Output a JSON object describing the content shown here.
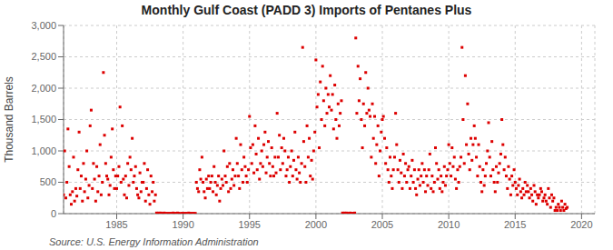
{
  "chart_data": {
    "type": "scatter",
    "title": "Monthly Gulf Coast (PADD 3) Imports of Pentanes Plus",
    "ylabel": "Thousand Barrels",
    "source": "Source: U.S. Energy Information Administration",
    "color": "#dd0000",
    "marker": "square",
    "grid": true,
    "xlim": [
      1981.0,
      2021.0
    ],
    "xticks": [
      1985,
      1990,
      1995,
      2000,
      2005,
      2010,
      2015,
      2020
    ],
    "ylim": [
      0,
      3000
    ],
    "yticks": [
      0,
      500,
      {
        "value": 1000,
        "label": "1,000"
      },
      {
        "value": 1500,
        "label": "1,500"
      },
      {
        "value": 2000,
        "label": "2,000"
      },
      {
        "value": 2500,
        "label": "2,500"
      },
      {
        "value": 3000,
        "label": "3,000"
      }
    ],
    "x": [
      1981.0,
      1981.08,
      1981.17,
      1981.25,
      1981.33,
      1981.42,
      1981.5,
      1981.58,
      1981.67,
      1981.75,
      1981.83,
      1981.92,
      1982.0,
      1982.08,
      1982.17,
      1982.25,
      1982.33,
      1982.42,
      1982.5,
      1982.58,
      1982.67,
      1982.75,
      1982.83,
      1982.92,
      1983.0,
      1983.08,
      1983.17,
      1983.25,
      1983.33,
      1983.42,
      1983.5,
      1983.58,
      1983.67,
      1983.75,
      1983.83,
      1983.92,
      1984.0,
      1984.08,
      1984.17,
      1984.25,
      1984.33,
      1984.42,
      1984.5,
      1984.58,
      1984.67,
      1984.75,
      1984.83,
      1984.92,
      1985.0,
      1985.08,
      1985.17,
      1985.25,
      1985.33,
      1985.42,
      1985.5,
      1985.58,
      1985.67,
      1985.75,
      1985.83,
      1985.92,
      1986.0,
      1986.08,
      1986.17,
      1986.25,
      1986.33,
      1986.42,
      1986.5,
      1986.58,
      1986.67,
      1986.75,
      1986.83,
      1986.92,
      1987.0,
      1987.08,
      1987.17,
      1987.25,
      1987.33,
      1987.42,
      1987.5,
      1987.58,
      1987.67,
      1987.75,
      1987.83,
      1987.92,
      1988.0,
      1988.08,
      1988.17,
      1988.25,
      1988.33,
      1988.42,
      1988.5,
      1988.58,
      1988.67,
      1988.75,
      1988.83,
      1988.92,
      1989.0,
      1989.08,
      1989.17,
      1989.25,
      1989.33,
      1989.42,
      1989.5,
      1989.58,
      1989.67,
      1989.75,
      1989.83,
      1989.92,
      1990.0,
      1990.08,
      1990.17,
      1990.25,
      1990.33,
      1990.42,
      1990.5,
      1990.58,
      1990.67,
      1990.75,
      1990.83,
      1990.92,
      1991.0,
      1991.08,
      1991.17,
      1991.25,
      1991.33,
      1991.42,
      1991.5,
      1991.58,
      1991.67,
      1991.75,
      1991.83,
      1991.92,
      1992.0,
      1992.08,
      1992.17,
      1992.25,
      1992.33,
      1992.42,
      1992.5,
      1992.58,
      1992.67,
      1992.75,
      1992.83,
      1992.92,
      1993.0,
      1993.08,
      1993.17,
      1993.25,
      1993.33,
      1993.42,
      1993.5,
      1993.58,
      1993.67,
      1993.75,
      1993.83,
      1993.92,
      1994.0,
      1994.08,
      1994.17,
      1994.25,
      1994.33,
      1994.42,
      1994.5,
      1994.58,
      1994.67,
      1994.75,
      1994.83,
      1994.92,
      1995.0,
      1995.08,
      1995.17,
      1995.25,
      1995.33,
      1995.42,
      1995.5,
      1995.58,
      1995.67,
      1995.75,
      1995.83,
      1995.92,
      1996.0,
      1996.08,
      1996.17,
      1996.25,
      1996.33,
      1996.42,
      1996.5,
      1996.58,
      1996.67,
      1996.75,
      1996.83,
      1996.92,
      1997.0,
      1997.08,
      1997.17,
      1997.25,
      1997.33,
      1997.42,
      1997.5,
      1997.58,
      1997.67,
      1997.75,
      1997.83,
      1997.92,
      1998.0,
      1998.08,
      1998.17,
      1998.25,
      1998.33,
      1998.42,
      1998.5,
      1998.58,
      1998.67,
      1998.75,
      1998.83,
      1998.92,
      1999.0,
      1999.08,
      1999.17,
      1999.25,
      1999.33,
      1999.42,
      1999.5,
      1999.58,
      1999.67,
      1999.75,
      1999.83,
      1999.92,
      2000.0,
      2000.08,
      2000.17,
      2000.25,
      2000.33,
      2000.42,
      2000.5,
      2000.58,
      2000.67,
      2000.75,
      2000.83,
      2000.92,
      2001.0,
      2001.08,
      2001.17,
      2001.25,
      2001.33,
      2001.42,
      2001.5,
      2001.58,
      2001.67,
      2001.75,
      2001.83,
      2001.92,
      2002.0,
      2002.08,
      2002.17,
      2002.25,
      2002.33,
      2002.42,
      2002.5,
      2002.58,
      2002.67,
      2002.75,
      2002.83,
      2002.92,
      2003.0,
      2003.08,
      2003.17,
      2003.25,
      2003.33,
      2003.42,
      2003.5,
      2003.58,
      2003.67,
      2003.75,
      2003.83,
      2003.92,
      2004.0,
      2004.08,
      2004.17,
      2004.25,
      2004.33,
      2004.42,
      2004.5,
      2004.58,
      2004.67,
      2004.75,
      2004.83,
      2004.92,
      2005.0,
      2005.08,
      2005.17,
      2005.25,
      2005.33,
      2005.42,
      2005.5,
      2005.58,
      2005.67,
      2005.75,
      2005.83,
      2005.92,
      2006.0,
      2006.08,
      2006.17,
      2006.25,
      2006.33,
      2006.42,
      2006.5,
      2006.58,
      2006.67,
      2006.75,
      2006.83,
      2006.92,
      2007.0,
      2007.08,
      2007.17,
      2007.25,
      2007.33,
      2007.42,
      2007.5,
      2007.58,
      2007.67,
      2007.75,
      2007.83,
      2007.92,
      2008.0,
      2008.08,
      2008.17,
      2008.25,
      2008.33,
      2008.42,
      2008.5,
      2008.58,
      2008.67,
      2008.75,
      2008.83,
      2008.92,
      2009.0,
      2009.08,
      2009.17,
      2009.25,
      2009.33,
      2009.42,
      2009.5,
      2009.58,
      2009.67,
      2009.75,
      2009.83,
      2009.92,
      2010.0,
      2010.08,
      2010.17,
      2010.25,
      2010.33,
      2010.42,
      2010.5,
      2010.58,
      2010.67,
      2010.75,
      2010.83,
      2010.92,
      2011.0,
      2011.08,
      2011.17,
      2011.25,
      2011.33,
      2011.42,
      2011.5,
      2011.58,
      2011.67,
      2011.75,
      2011.83,
      2011.92,
      2012.0,
      2012.08,
      2012.17,
      2012.25,
      2012.33,
      2012.42,
      2012.5,
      2012.58,
      2012.67,
      2012.75,
      2012.83,
      2012.92,
      2013.0,
      2013.08,
      2013.17,
      2013.25,
      2013.33,
      2013.42,
      2013.5,
      2013.58,
      2013.67,
      2013.75,
      2013.83,
      2013.92,
      2014.0,
      2014.08,
      2014.17,
      2014.25,
      2014.33,
      2014.42,
      2014.5,
      2014.58,
      2014.67,
      2014.75,
      2014.83,
      2014.92,
      2015.0,
      2015.08,
      2015.17,
      2015.25,
      2015.33,
      2015.42,
      2015.5,
      2015.58,
      2015.67,
      2015.75,
      2015.83,
      2015.92,
      2016.0,
      2016.08,
      2016.17,
      2016.25,
      2016.33,
      2016.42,
      2016.5,
      2016.58,
      2016.67,
      2016.75,
      2016.83,
      2016.92,
      2017.0,
      2017.08,
      2017.17,
      2017.25,
      2017.33,
      2017.42,
      2017.5,
      2017.58,
      2017.67,
      2017.75,
      2017.83,
      2017.92,
      2018.0,
      2018.08,
      2018.17,
      2018.25,
      2018.33,
      2018.42,
      2018.5,
      2018.58,
      2018.67,
      2018.75,
      2018.83,
      2018.92
    ],
    "values": [
      300,
      1000,
      250,
      500,
      1350,
      750,
      300,
      150,
      350,
      900,
      200,
      400,
      280,
      700,
      1300,
      400,
      600,
      200,
      800,
      350,
      550,
      1000,
      250,
      450,
      1400,
      1650,
      400,
      800,
      550,
      200,
      750,
      350,
      600,
      1100,
      300,
      500,
      2250,
      1250,
      800,
      600,
      550,
      300,
      450,
      900,
      1350,
      700,
      400,
      600,
      400,
      600,
      750,
      1700,
      500,
      1400,
      550,
      300,
      600,
      250,
      800,
      450,
      900,
      700,
      1200,
      500,
      600,
      750,
      400,
      300,
      250,
      650,
      350,
      500,
      500,
      800,
      200,
      400,
      700,
      300,
      150,
      600,
      350,
      500,
      200,
      300,
      10,
      5,
      10,
      5,
      10,
      0,
      5,
      10,
      0,
      5,
      0,
      5,
      0,
      5,
      0,
      10,
      0,
      5,
      0,
      10,
      5,
      0,
      0,
      5,
      0,
      5,
      0,
      5,
      0,
      10,
      0,
      5,
      0,
      5,
      0,
      5,
      500,
      400,
      350,
      700,
      550,
      900,
      500,
      350,
      250,
      550,
      400,
      600,
      400,
      500,
      600,
      350,
      750,
      500,
      300,
      450,
      600,
      200,
      400,
      550,
      450,
      1000,
      600,
      500,
      750,
      350,
      800,
      400,
      550,
      700,
      450,
      600,
      1200,
      800,
      600,
      400,
      1100,
      700,
      500,
      900,
      750,
      600,
      500,
      700,
      1550,
      1050,
      800,
      1100,
      650,
      1400,
      950,
      700,
      1200,
      550,
      800,
      1000,
      750,
      1100,
      1300,
      650,
      900,
      1150,
      800,
      600,
      1050,
      750,
      600,
      900,
      650,
      1600,
      900,
      1250,
      700,
      1050,
      800,
      1200,
      1000,
      600,
      700,
      900,
      500,
      750,
      1000,
      600,
      850,
      1300,
      700,
      550,
      900,
      650,
      500,
      800,
      2650,
      1150,
      750,
      500,
      1400,
      900,
      1200,
      600,
      850,
      550,
      1000,
      1300,
      2450,
      1700,
      1900,
      1050,
      2100,
      1500,
      2350,
      1800,
      1400,
      2000,
      1600,
      1900,
      1700,
      2200,
      1650,
      1900,
      1350,
      2050,
      1500,
      1200,
      1750,
      1400,
      1600,
      1800,
      10,
      5,
      10,
      5,
      10,
      5,
      0,
      10,
      5,
      0,
      5,
      10,
      2800,
      1600,
      2350,
      1800,
      2150,
      1500,
      1050,
      1750,
      1400,
      2250,
      1600,
      2000,
      1650,
      1550,
      900,
      1750,
      1200,
      1550,
      800,
      1100,
      1400,
      600,
      1000,
      1300,
      1500,
      1550,
      1200,
      800,
      1050,
      700,
      500,
      900,
      600,
      400,
      700,
      900,
      1600,
      1100,
      700,
      500,
      850,
      650,
      400,
      950,
      600,
      800,
      500,
      700,
      750,
      400,
      600,
      850,
      500,
      700,
      400,
      300,
      550,
      700,
      450,
      600,
      800,
      500,
      700,
      350,
      600,
      450,
      700,
      950,
      400,
      600,
      350,
      500,
      1050,
      800,
      550,
      700,
      400,
      600,
      350,
      500,
      750,
      450,
      600,
      700,
      1100,
      800,
      600,
      1050,
      750,
      900,
      550,
      400,
      700,
      500,
      750,
      900,
      2650,
      1500,
      800,
      2200,
      1100,
      1750,
      950,
      700,
      1200,
      850,
      1100,
      1400,
      1200,
      900,
      600,
      1100,
      750,
      500,
      350,
      700,
      450,
      600,
      800,
      1000,
      1450,
      900,
      600,
      1150,
      700,
      500,
      350,
      750,
      500,
      650,
      800,
      950,
      1500,
      1100,
      700,
      900,
      600,
      400,
      750,
      550,
      300,
      600,
      450,
      700,
      500,
      400,
      300,
      450,
      550,
      350,
      250,
      400,
      300,
      500,
      350,
      450,
      350,
      250,
      400,
      300,
      200,
      450,
      350,
      150,
      300,
      250,
      300,
      400,
      350,
      200,
      250,
      300,
      200,
      150,
      400,
      250,
      100,
      300,
      200,
      250,
      50,
      100,
      50,
      150,
      100,
      50,
      200,
      100,
      50,
      150,
      80,
      100
    ]
  }
}
